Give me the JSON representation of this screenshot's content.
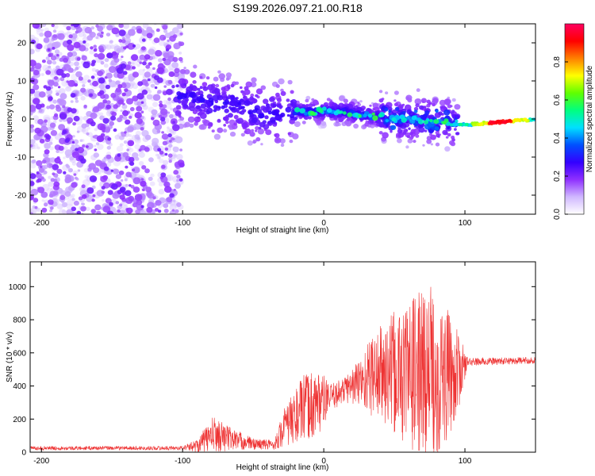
{
  "title": "S199.2026.097.21.00.R18",
  "colors": {
    "axis": "#000000",
    "snr_line": "#ee3333",
    "spectrogram_low": "#d9c6ff",
    "spectrogram_mid": "#6a00ff",
    "spectrogram_high": "#ff2020"
  },
  "chart_data": [
    {
      "type": "heatmap",
      "name": "spectrogram",
      "title": "S199.2026.097.21.00.R18",
      "xlabel": "Height of straight line (km)",
      "ylabel": "Frequency (Hz)",
      "xlim": [
        -208,
        150
      ],
      "ylim": [
        -25,
        25
      ],
      "xticks": [
        -200,
        -100,
        0,
        100
      ],
      "xtick_labels": [
        "-200",
        "-100",
        "0",
        "100"
      ],
      "yticks": [
        20,
        10,
        0,
        -10,
        -20
      ],
      "ytick_labels": [
        "20",
        "10",
        "0",
        "-10",
        "-20"
      ],
      "colorbar": {
        "label": "Normalized spectral amplitude",
        "range": [
          0,
          1
        ],
        "ticks": [
          0.0,
          0.2,
          0.4,
          0.6,
          0.8
        ],
        "tick_labels": [
          "0.0",
          "0.2",
          "0.4",
          "0.6",
          "0.8"
        ],
        "colormap": [
          "#ffffff",
          "#d0b8ff",
          "#8f30ff",
          "#3300ff",
          "#0050ff",
          "#00e0ff",
          "#00ff80",
          "#60ff00",
          "#ffff00",
          "#ff8000",
          "#ff0000",
          "#ff0060"
        ]
      },
      "ridge": [
        {
          "x": -95,
          "y": 6
        },
        {
          "x": -80,
          "y": 4
        },
        {
          "x": -65,
          "y": 4
        },
        {
          "x": -50,
          "y": 2
        },
        {
          "x": -35,
          "y": 1
        },
        {
          "x": -20,
          "y": 2
        },
        {
          "x": -10,
          "y": 2
        },
        {
          "x": 0,
          "y": 2
        },
        {
          "x": 15,
          "y": 2
        },
        {
          "x": 30,
          "y": 1
        },
        {
          "x": 50,
          "y": 0
        },
        {
          "x": 70,
          "y": 0
        },
        {
          "x": 90,
          "y": -1
        },
        {
          "x": 100,
          "y": -1.5
        },
        {
          "x": 120,
          "y": -1
        },
        {
          "x": 150,
          "y": 0
        }
      ],
      "peak": {
        "x": 125,
        "y": -1,
        "value": 0.95
      }
    },
    {
      "type": "line",
      "name": "snr",
      "xlabel": "Height of straight line (km)",
      "ylabel": "SNR (10 * v/v)",
      "xlim": [
        -208,
        150
      ],
      "ylim": [
        0,
        1150
      ],
      "xticks": [
        -200,
        -100,
        0,
        100
      ],
      "xtick_labels": [
        "-200",
        "-100",
        "0",
        "100"
      ],
      "yticks": [
        0,
        200,
        400,
        600,
        800,
        1000
      ],
      "ytick_labels": [
        "0",
        "200",
        "400",
        "600",
        "800",
        "1000"
      ],
      "series": [
        {
          "name": "SNR",
          "envelope": [
            {
              "x": -208,
              "base": 25,
              "amp": 12
            },
            {
              "x": -100,
              "base": 25,
              "amp": 12
            },
            {
              "x": -90,
              "base": 40,
              "amp": 40
            },
            {
              "x": -78,
              "base": 110,
              "amp": 110
            },
            {
              "x": -65,
              "base": 80,
              "amp": 70
            },
            {
              "x": -50,
              "base": 50,
              "amp": 35
            },
            {
              "x": -35,
              "base": 45,
              "amp": 30
            },
            {
              "x": -28,
              "base": 150,
              "amp": 120
            },
            {
              "x": -15,
              "base": 260,
              "amp": 200
            },
            {
              "x": -5,
              "base": 300,
              "amp": 220
            },
            {
              "x": 5,
              "base": 330,
              "amp": 80
            },
            {
              "x": 15,
              "base": 380,
              "amp": 80
            },
            {
              "x": 25,
              "base": 420,
              "amp": 150
            },
            {
              "x": 35,
              "base": 470,
              "amp": 260
            },
            {
              "x": 50,
              "base": 470,
              "amp": 380
            },
            {
              "x": 65,
              "base": 480,
              "amp": 480
            },
            {
              "x": 75,
              "base": 470,
              "amp": 560
            },
            {
              "x": 85,
              "base": 460,
              "amp": 450
            },
            {
              "x": 95,
              "base": 480,
              "amp": 250
            },
            {
              "x": 102,
              "base": 545,
              "amp": 25
            },
            {
              "x": 150,
              "base": 555,
              "amp": 20
            }
          ]
        }
      ]
    }
  ]
}
